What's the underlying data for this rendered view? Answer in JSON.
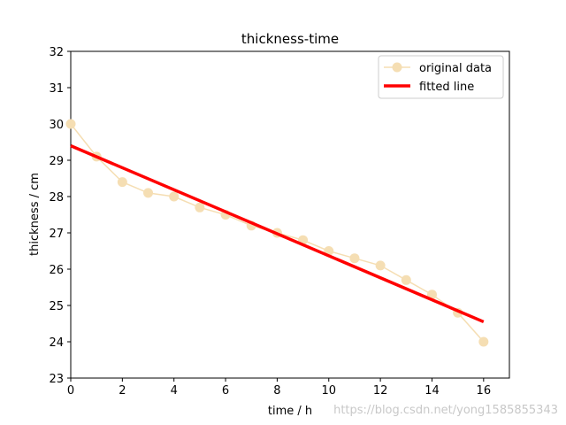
{
  "chart_data": {
    "type": "line",
    "title": "thickness-time",
    "xlabel": "time / h",
    "ylabel": "thickness / cm",
    "xlim": [
      0,
      17
    ],
    "ylim": [
      23,
      32
    ],
    "xticks": [
      0,
      2,
      4,
      6,
      8,
      10,
      12,
      14,
      16
    ],
    "yticks": [
      23,
      24,
      25,
      26,
      27,
      28,
      29,
      30,
      31,
      32
    ],
    "grid": false,
    "legend_position": "top-right",
    "series": [
      {
        "name": "original data",
        "style": "line-with-markers",
        "color": "#f5deb3",
        "x": [
          0,
          1,
          2,
          3,
          4,
          5,
          6,
          7,
          8,
          9,
          10,
          11,
          12,
          13,
          14,
          15,
          16
        ],
        "y": [
          30.0,
          29.1,
          28.4,
          28.1,
          28.0,
          27.7,
          27.5,
          27.2,
          27.0,
          26.8,
          26.5,
          26.3,
          26.1,
          25.7,
          25.3,
          24.8,
          24.0
        ]
      },
      {
        "name": "fitted line",
        "style": "line",
        "color": "#ff0000",
        "x": [
          0,
          16
        ],
        "y": [
          29.4,
          24.55
        ]
      }
    ]
  },
  "watermark": "https://blog.csdn.net/yong1585855343"
}
